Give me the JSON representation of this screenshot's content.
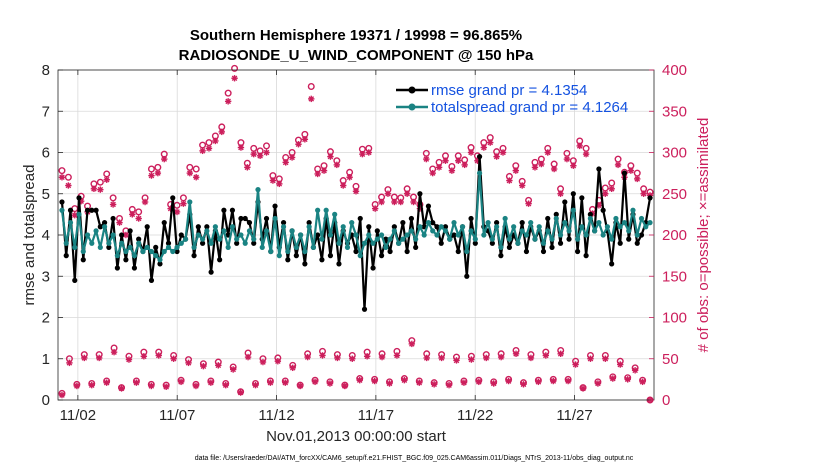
{
  "chart_data": {
    "type": "line",
    "title_line1": "Southern Hemisphere 19371 / 19998 = 96.865%",
    "title_line2": "RADIOSONDE_U_WIND_COMPONENT @ 150 hPa",
    "xlabel": "Nov.01,2013 00:00:00 start",
    "ylabel_left": "rmse and totalspread",
    "ylabel_right": "# of obs: o=possible; ×=assimilated",
    "xlim": [
      0.5,
      30.5
    ],
    "ylim_left": [
      0,
      8
    ],
    "ylim_right": [
      0,
      400
    ],
    "x_ticks": [
      1.5,
      6.5,
      11.5,
      16.5,
      21.5,
      26.5
    ],
    "x_tick_labels": [
      "11/02",
      "11/07",
      "11/12",
      "11/17",
      "11/22",
      "11/27"
    ],
    "y_ticks_left": [
      0,
      1,
      2,
      3,
      4,
      5,
      6,
      7,
      8
    ],
    "y_ticks_right": [
      0,
      50,
      100,
      150,
      200,
      250,
      300,
      350,
      400
    ],
    "legend_location": "top-right",
    "footer": "data file: /Users/raeder/DAI/ATM_forcXX/CAM6_setup/f.e21.FHIST_BGC.f09_025.CAM6assim.011/Diags_NTrS_2013-11/obs_diag_output.nc",
    "colors": {
      "rmse": "#000000",
      "spread": "#1a8383",
      "obs": "#cc1f5c",
      "legend_text": "#1452e0"
    },
    "series": [
      {
        "name": "rmse grand pr = 4.1354",
        "values": [
          4.8,
          3.5,
          4.6,
          2.9,
          4.9,
          3.4,
          4.6,
          4.6,
          4.6,
          4.2,
          4.3,
          3.7,
          4.4,
          3.2,
          4.0,
          3.4,
          4.1,
          3.2,
          3.9,
          3.6,
          4.2,
          2.9,
          3.7,
          3.3,
          4.3,
          3.8,
          4.9,
          3.6,
          4.0,
          3.9,
          4.5,
          3.5,
          4.2,
          3.8,
          4.2,
          3.1,
          4.1,
          3.4,
          4.6,
          4.0,
          4.6,
          3.8,
          4.4,
          4.4,
          4.3,
          3.8,
          4.8,
          3.9,
          4.4,
          3.6,
          4.7,
          3.7,
          4.3,
          3.4,
          4.1,
          3.5,
          4.0,
          3.3,
          4.3,
          3.7,
          4.0,
          3.4,
          4.4,
          3.5,
          4.3,
          3.3,
          4.1,
          3.8,
          4.0,
          3.6,
          4.4,
          2.2,
          4.2,
          3.2,
          4.1,
          3.5,
          3.9,
          3.6,
          4.2,
          3.8,
          4.3,
          3.6,
          4.4,
          3.7,
          5.0,
          4.2,
          4.7,
          4.3,
          4.2,
          3.8,
          4.2,
          3.9,
          4.0,
          3.6,
          4.2,
          3.0,
          4.4,
          3.8,
          5.9,
          4.2,
          4.1,
          3.8,
          4.3,
          3.5,
          4.2,
          3.7,
          4.0,
          3.8,
          4.3,
          3.6,
          4.2,
          3.9,
          4.1,
          3.6,
          4.4,
          3.7,
          4.5,
          3.8,
          4.8,
          3.9,
          5.0,
          3.6,
          4.9,
          3.5,
          4.5,
          4.1,
          5.6,
          4.6,
          4.1,
          3.3,
          4.3,
          3.8,
          5.5,
          3.9,
          4.5,
          3.8,
          4.0,
          4.3,
          4.9
        ]
      },
      {
        "name": "totalspread grand pr = 4.1264",
        "values": [
          4.6,
          3.8,
          4.3,
          3.7,
          4.5,
          3.6,
          4.0,
          3.8,
          4.1,
          3.7,
          4.2,
          3.8,
          4.0,
          3.5,
          3.8,
          3.6,
          3.7,
          3.5,
          3.8,
          3.6,
          3.7,
          3.6,
          3.5,
          3.4,
          3.6,
          3.7,
          3.6,
          3.7,
          3.8,
          3.9,
          4.8,
          3.7,
          4.0,
          3.9,
          4.1,
          3.8,
          4.2,
          3.9,
          4.1,
          3.7,
          4.2,
          3.9,
          4.0,
          3.8,
          4.1,
          3.9,
          5.1,
          3.7,
          4.1,
          3.6,
          4.4,
          3.5,
          4.2,
          3.6,
          4.1,
          3.7,
          4.0,
          3.6,
          4.2,
          3.7,
          4.6,
          3.9,
          4.6,
          4.0,
          4.5,
          3.8,
          4.2,
          3.7,
          4.3,
          4.0,
          3.5,
          3.8,
          4.0,
          3.8,
          3.9,
          4.0,
          3.7,
          3.9,
          4.1,
          3.8,
          3.9,
          4.0,
          4.1,
          3.9,
          4.2,
          4.0,
          4.3,
          4.1,
          4.0,
          4.2,
          4.1,
          3.9,
          4.3,
          4.0,
          4.2,
          3.6,
          4.1,
          3.9,
          5.5,
          4.0,
          4.3,
          3.9,
          4.2,
          3.7,
          4.4,
          3.9,
          4.2,
          3.8,
          4.1,
          4.0,
          4.3,
          3.9,
          4.2,
          3.8,
          4.1,
          3.9,
          4.4,
          4.0,
          4.3,
          4.1,
          4.6,
          3.9,
          4.2,
          4.0,
          4.4,
          4.1,
          4.3,
          4.0,
          4.2,
          3.9,
          4.4,
          4.2,
          4.3,
          4.1,
          4.6,
          4.0,
          4.4,
          4.2,
          4.3
        ]
      }
    ],
    "obs_possible": [
      278,
      270,
      232,
      247,
      235,
      262,
      264,
      274,
      245,
      220,
      205,
      231,
      228,
      245,
      280,
      282,
      298,
      237,
      236,
      245,
      282,
      280,
      309,
      312,
      320,
      331,
      372,
      402,
      312,
      287,
      305,
      302,
      308,
      272,
      268,
      294,
      300,
      315,
      322,
      380,
      280,
      284,
      301,
      290,
      266,
      276,
      259,
      304,
      305,
      237,
      246,
      255,
      246,
      245,
      256,
      246,
      237,
      299,
      280,
      288,
      296,
      283,
      296,
      291,
      306,
      296,
      312,
      318,
      301,
      305,
      271,
      284,
      265,
      242,
      288,
      292,
      305,
      286,
      256,
      299,
      290,
      314,
      305,
      231,
      242,
      257,
      263,
      292,
      276,
      284,
      275,
      256,
      252
    ],
    "obs_assimilated": [
      270,
      260,
      224,
      241,
      228,
      256,
      255,
      267,
      237,
      215,
      200,
      225,
      220,
      240,
      272,
      275,
      292,
      232,
      228,
      238,
      275,
      270,
      302,
      305,
      314,
      325,
      362,
      390,
      306,
      282,
      298,
      296,
      300,
      266,
      262,
      288,
      294,
      310,
      316,
      365,
      274,
      278,
      295,
      285,
      260,
      270,
      253,
      298,
      300,
      232,
      240,
      250,
      240,
      240,
      250,
      240,
      232,
      292,
      275,
      282,
      290,
      278,
      290,
      285,
      300,
      290,
      306,
      312,
      295,
      300,
      266,
      278,
      260,
      238,
      282,
      286,
      300,
      280,
      250,
      292,
      284,
      308,
      298,
      226,
      236,
      250,
      256,
      285,
      270,
      278,
      268,
      250,
      248
    ],
    "obs_possible_00z": [
      8,
      50,
      19,
      55,
      20,
      55,
      23,
      63,
      15,
      53,
      23,
      58,
      19,
      58,
      18,
      54,
      24,
      49,
      19,
      44,
      23,
      46,
      20,
      40,
      10,
      57,
      20,
      50,
      23,
      51,
      23,
      42,
      18,
      56,
      24,
      59,
      22,
      55,
      18,
      54,
      26,
      58,
      25,
      56,
      22,
      59,
      26,
      72,
      23,
      56,
      21,
      55,
      20,
      52,
      23,
      53,
      24,
      55,
      22,
      56,
      25,
      60,
      21,
      55,
      24,
      58,
      25,
      60,
      25,
      47,
      15,
      54,
      22,
      54,
      28,
      47,
      27,
      39,
      24,
      0
    ],
    "obs_assimilated_00z": [
      6,
      45,
      17,
      51,
      18,
      51,
      21,
      58,
      14,
      49,
      21,
      53,
      17,
      54,
      16,
      50,
      22,
      45,
      17,
      41,
      21,
      42,
      18,
      37,
      9,
      52,
      18,
      46,
      21,
      47,
      21,
      39,
      17,
      52,
      22,
      54,
      20,
      51,
      17,
      50,
      24,
      53,
      23,
      52,
      20,
      54,
      24,
      68,
      21,
      51,
      19,
      51,
      18,
      48,
      21,
      49,
      22,
      51,
      20,
      52,
      23,
      56,
      19,
      51,
      22,
      54,
      23,
      56,
      23,
      43,
      14,
      50,
      20,
      50,
      26,
      43,
      25,
      36,
      22,
      0
    ]
  }
}
